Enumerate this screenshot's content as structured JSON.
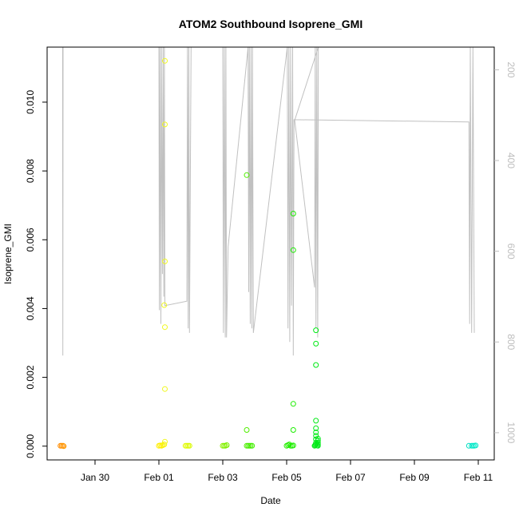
{
  "chart_data": {
    "type": "scatter",
    "title": "ATOM2 Southbound Isoprene_GMI",
    "xlabel": "Date",
    "ylabel": "Isoprene_GMI",
    "x_range": [
      "2017-01-28T12:00",
      "2017-02-11T12:00"
    ],
    "ylim": [
      -0.0004,
      0.0116
    ],
    "y_ticks": [
      0.0,
      0.002,
      0.004,
      0.006,
      0.008,
      0.01
    ],
    "y_tick_labels": [
      "0.000",
      "0.002",
      "0.004",
      "0.006",
      "0.008",
      "0.010"
    ],
    "x_ticks": [
      "2017-01-30",
      "2017-02-01",
      "2017-02-03",
      "2017-02-05",
      "2017-02-07",
      "2017-02-09",
      "2017-02-11"
    ],
    "x_tick_labels": [
      "Jan 30",
      "Feb 01",
      "Feb 03",
      "Feb 05",
      "Feb 07",
      "Feb 09",
      "Feb 11"
    ],
    "right_axis": {
      "label": "",
      "reversed": true,
      "range": [
        1060,
        150
      ],
      "ticks": [
        200,
        400,
        600,
        800,
        1000
      ],
      "tick_labels": [
        "200",
        "400",
        "600",
        "800",
        "1000"
      ],
      "color": "#bdbdbd"
    },
    "grid": false,
    "legend": "none",
    "pressure_line": {
      "color": "#c0c0c0",
      "points": [
        [
          "2017-01-28T23:40",
          150
        ],
        [
          "2017-01-28T23:50",
          830
        ],
        [
          "2017-01-29T00:00",
          150
        ],
        [
          "2017-02-01T00:00",
          150
        ],
        [
          "2017-02-01T00:20",
          730
        ],
        [
          "2017-02-01T00:50",
          150
        ],
        [
          "2017-02-01T01:30",
          760
        ],
        [
          "2017-02-01T02:00",
          150
        ],
        [
          "2017-02-01T02:40",
          650
        ],
        [
          "2017-02-01T03:10",
          150
        ],
        [
          "2017-02-01T03:40",
          700
        ],
        [
          "2017-02-01T04:10",
          150
        ],
        [
          "2017-02-01T04:30",
          720
        ],
        [
          "2017-02-01T21:00",
          710
        ],
        [
          "2017-02-01T21:30",
          150
        ],
        [
          "2017-02-01T22:00",
          770
        ],
        [
          "2017-02-01T22:30",
          150
        ],
        [
          "2017-02-01T23:00",
          780
        ],
        [
          "2017-02-02T00:10",
          150
        ],
        [
          "2017-02-03T00:00",
          150
        ],
        [
          "2017-02-03T00:30",
          780
        ],
        [
          "2017-02-03T01:10",
          150
        ],
        [
          "2017-02-03T01:50",
          790
        ],
        [
          "2017-02-03T02:20",
          150
        ],
        [
          "2017-02-03T02:50",
          790
        ],
        [
          "2017-02-03T04:00",
          590
        ],
        [
          "2017-02-03T19:00",
          150
        ],
        [
          "2017-02-03T19:30",
          690
        ],
        [
          "2017-02-03T20:00",
          150
        ],
        [
          "2017-02-03T20:40",
          760
        ],
        [
          "2017-02-03T21:10",
          150
        ],
        [
          "2017-02-03T21:50",
          770
        ],
        [
          "2017-02-03T22:20",
          150
        ],
        [
          "2017-02-03T23:00",
          780
        ],
        [
          "2017-02-05T00:30",
          150
        ],
        [
          "2017-02-05T01:00",
          770
        ],
        [
          "2017-02-05T01:40",
          150
        ],
        [
          "2017-02-05T02:20",
          800
        ],
        [
          "2017-02-05T03:00",
          150
        ],
        [
          "2017-02-05T03:40",
          720
        ],
        [
          "2017-02-05T04:30",
          150
        ],
        [
          "2017-02-05T05:00",
          830
        ],
        [
          "2017-02-05T05:30",
          310
        ],
        [
          "2017-02-05T06:00",
          310
        ],
        [
          "2017-02-05T21:00",
          680
        ],
        [
          "2017-02-05T21:30",
          150
        ],
        [
          "2017-02-05T22:00",
          770
        ],
        [
          "2017-02-05T22:40",
          150
        ],
        [
          "2017-02-05T23:20",
          790
        ],
        [
          "2017-02-05T23:50",
          150
        ],
        [
          "2017-02-05T06:10",
          310
        ],
        [
          "2017-02-10T17:00",
          315
        ],
        [
          "2017-02-10T17:30",
          760
        ],
        [
          "2017-02-10T18:00",
          150
        ],
        [
          "2017-02-10T19:00",
          780
        ],
        [
          "2017-02-10T20:00",
          150
        ],
        [
          "2017-02-10T21:00",
          780
        ]
      ]
    },
    "series": [
      {
        "color_scale": "elapsed time (orange → yellow → green → cyan)",
        "points": [
          [
            "2017-01-28T22:00",
            1e-05,
            "#ff8c00"
          ],
          [
            "2017-01-28T23:00",
            1e-05,
            "#ff8c00"
          ],
          [
            "2017-01-29T00:00",
            1e-05,
            "#ff9400"
          ],
          [
            "2017-01-29T00:30",
            0.0,
            "#ff9a00"
          ],
          [
            "2017-02-01T00:00",
            1e-05,
            "#ffee00"
          ],
          [
            "2017-02-01T01:00",
            2e-05,
            "#ffee00"
          ],
          [
            "2017-02-01T02:00",
            1e-05,
            "#ffee00"
          ],
          [
            "2017-02-01T03:00",
            3e-05,
            "#ffee00"
          ],
          [
            "2017-02-01T04:00",
            5e-05,
            "#f6f600"
          ],
          [
            "2017-02-01T04:30",
            0.0112,
            "#f0f820"
          ],
          [
            "2017-02-01T04:30",
            0.00935,
            "#f0f820"
          ],
          [
            "2017-02-01T04:30",
            0.00537,
            "#f0f820"
          ],
          [
            "2017-02-01T04:00",
            0.0041,
            "#f0f820"
          ],
          [
            "2017-02-01T04:30",
            0.00346,
            "#f0f820"
          ],
          [
            "2017-02-01T04:30",
            0.00166,
            "#f0f820"
          ],
          [
            "2017-02-01T04:30",
            0.00013,
            "#f0f820"
          ],
          [
            "2017-02-01T20:00",
            1e-05,
            "#e6fa00"
          ],
          [
            "2017-02-01T21:00",
            1e-05,
            "#e0fa00"
          ],
          [
            "2017-02-01T22:00",
            1e-05,
            "#dcfa00"
          ],
          [
            "2017-02-01T23:00",
            1e-05,
            "#d8fa00"
          ],
          [
            "2017-02-03T00:00",
            1e-05,
            "#90f000"
          ],
          [
            "2017-02-03T01:00",
            1e-05,
            "#88f000"
          ],
          [
            "2017-02-03T02:00",
            1e-05,
            "#80f000"
          ],
          [
            "2017-02-03T03:00",
            3e-05,
            "#78f000"
          ],
          [
            "2017-02-03T18:00",
            1e-05,
            "#50ee00"
          ],
          [
            "2017-02-03T19:00",
            1e-05,
            "#4cee00"
          ],
          [
            "2017-02-03T20:00",
            1e-05,
            "#48ee00"
          ],
          [
            "2017-02-03T21:00",
            1e-05,
            "#44ee00"
          ],
          [
            "2017-02-03T22:00",
            1e-05,
            "#40ee00"
          ],
          [
            "2017-02-03T18:00",
            0.00047,
            "#50ee00"
          ],
          [
            "2017-02-03T18:00",
            0.00788,
            "#50ee00"
          ],
          [
            "2017-02-05T00:00",
            1e-05,
            "#28ee00"
          ],
          [
            "2017-02-05T01:00",
            3e-05,
            "#24ee00"
          ],
          [
            "2017-02-05T02:00",
            5e-05,
            "#22ee00"
          ],
          [
            "2017-02-05T03:00",
            1e-05,
            "#20ee00"
          ],
          [
            "2017-02-05T04:00",
            1e-05,
            "#1eee00"
          ],
          [
            "2017-02-05T05:00",
            2e-05,
            "#1cee00"
          ],
          [
            "2017-02-05T05:00",
            0.00676,
            "#1cee00"
          ],
          [
            "2017-02-05T05:00",
            0.0057,
            "#1cee00"
          ],
          [
            "2017-02-05T05:00",
            0.00047,
            "#1cee00"
          ],
          [
            "2017-02-05T05:00",
            0.00123,
            "#1cee00"
          ],
          [
            "2017-02-05T21:00",
            1e-05,
            "#00ea10"
          ],
          [
            "2017-02-05T21:30",
            3e-05,
            "#00ea10"
          ],
          [
            "2017-02-05T22:00",
            5e-05,
            "#00ea14"
          ],
          [
            "2017-02-05T22:00",
            0.0001,
            "#00ea14"
          ],
          [
            "2017-02-05T22:00",
            0.0002,
            "#00ea14"
          ],
          [
            "2017-02-05T22:00",
            0.0003,
            "#00ea14"
          ],
          [
            "2017-02-05T22:00",
            0.0004,
            "#00ea14"
          ],
          [
            "2017-02-05T22:00",
            0.00052,
            "#00ea14"
          ],
          [
            "2017-02-05T22:00",
            0.00074,
            "#00ea14"
          ],
          [
            "2017-02-05T22:00",
            0.00236,
            "#00ea14"
          ],
          [
            "2017-02-05T22:00",
            0.00298,
            "#00ea14"
          ],
          [
            "2017-02-05T22:00",
            0.00337,
            "#00ea14"
          ],
          [
            "2017-02-05T23:00",
            2e-05,
            "#00ea18"
          ],
          [
            "2017-02-05T23:30",
            0.0001,
            "#00ea18"
          ],
          [
            "2017-02-05T23:30",
            0.00016,
            "#00ea18"
          ],
          [
            "2017-02-05T23:30",
            0.00022,
            "#00ea18"
          ],
          [
            "2017-02-05T23:30",
            6e-05,
            "#00ea18"
          ],
          [
            "2017-02-05T23:30",
            1e-05,
            "#00ea18"
          ],
          [
            "2017-02-10T17:00",
            1e-05,
            "#00dcc0"
          ],
          [
            "2017-02-10T19:00",
            1e-05,
            "#00e8c8"
          ],
          [
            "2017-02-10T20:00",
            1e-05,
            "#00e8c8"
          ],
          [
            "2017-02-10T21:00",
            1e-05,
            "#00e8c8"
          ],
          [
            "2017-02-10T22:00",
            2e-05,
            "#00e8c8"
          ]
        ]
      }
    ]
  }
}
